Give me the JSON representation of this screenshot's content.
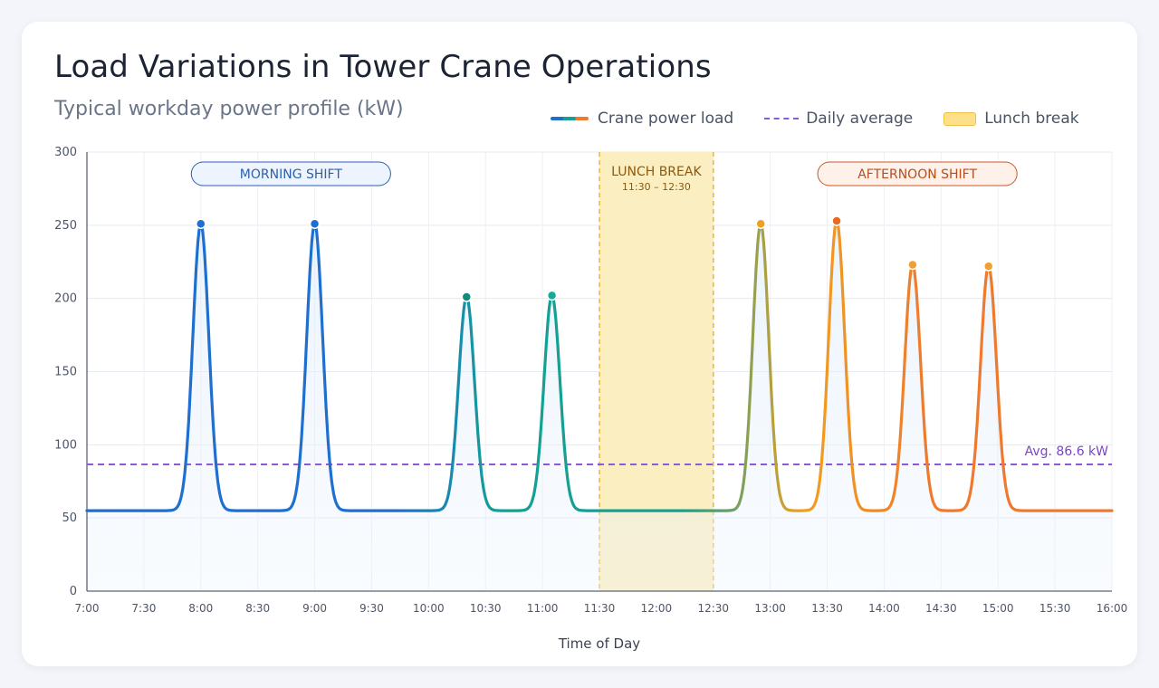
{
  "title": "Load Variations in Tower Crane Operations",
  "subtitle": "Typical workday power profile (kW)",
  "legend": {
    "load": "Crane power load",
    "average": "Daily average",
    "lunch": "Lunch break"
  },
  "colors": {
    "morning": "#1e6fd0",
    "mid": "#14a093",
    "afternoon": "#ef7a2d",
    "average": "#8a5bd6",
    "lunch_fill": "#fbeec0",
    "lunch_border": "#f0b52e"
  },
  "chart_data": {
    "type": "line",
    "xlabel": "Time of Day",
    "ylabel": "",
    "ylim": [
      0,
      300
    ],
    "yticks": [
      0,
      50,
      100,
      150,
      200,
      250,
      300
    ],
    "xlim": [
      "7:00",
      "16:00"
    ],
    "xticks": [
      "7:00",
      "7:30",
      "8:00",
      "8:30",
      "9:00",
      "9:30",
      "10:00",
      "10:30",
      "11:00",
      "11:30",
      "12:00",
      "12:30",
      "13:00",
      "13:30",
      "14:00",
      "14:30",
      "15:00",
      "15:30",
      "16:00"
    ],
    "grid": true,
    "legend_position": "top-right",
    "baseline_kw": 55,
    "series": [
      {
        "name": "Crane power load",
        "peaks": [
          {
            "time": "8:00",
            "value": 251
          },
          {
            "time": "9:00",
            "value": 251
          },
          {
            "time": "10:20",
            "value": 201
          },
          {
            "time": "11:05",
            "value": 202
          },
          {
            "time": "12:55",
            "value": 251
          },
          {
            "time": "13:35",
            "value": 253
          },
          {
            "time": "14:15",
            "value": 223
          },
          {
            "time": "14:55",
            "value": 222
          }
        ]
      }
    ],
    "average": {
      "value": 86.6,
      "label": "Avg.  86.6 kW"
    },
    "lunch_break": {
      "start": "11:30",
      "end": "12:30",
      "label": "LUNCH BREAK",
      "sublabel": "11:30 – 12:30"
    },
    "annotations": [
      {
        "text": "MORNING SHIFT",
        "start": "7:55",
        "end": "9:40"
      },
      {
        "text": "AFTERNOON SHIFT",
        "start": "13:25",
        "end": "15:10"
      }
    ]
  }
}
